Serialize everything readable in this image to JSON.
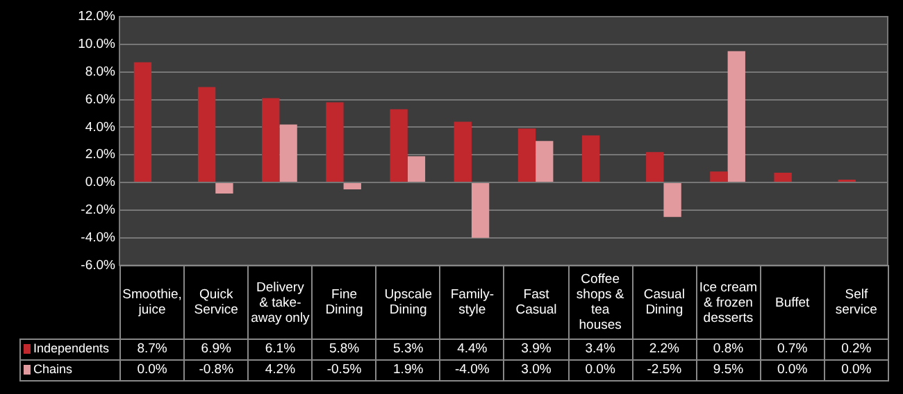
{
  "chart_data": {
    "type": "bar",
    "categories": [
      "Smoothie, juice",
      "Quick Service",
      "Delivery & take-away only",
      "Fine Dining",
      "Upscale Dining",
      "Family-style",
      "Fast Casual",
      "Coffee shops & tea houses",
      "Casual Dining",
      "Ice cream & frozen desserts",
      "Buffet",
      "Self service"
    ],
    "series": [
      {
        "name": "Independents",
        "color": "#c0282e",
        "values": [
          8.7,
          6.9,
          6.1,
          5.8,
          5.3,
          4.4,
          3.9,
          3.4,
          2.2,
          0.8,
          0.7,
          0.2
        ],
        "value_labels": [
          "8.7%",
          "6.9%",
          "6.1%",
          "5.8%",
          "5.3%",
          "4.4%",
          "3.9%",
          "3.4%",
          "2.2%",
          "0.8%",
          "0.7%",
          "0.2%"
        ]
      },
      {
        "name": "Chains",
        "color": "#e39a9e",
        "values": [
          0.0,
          -0.8,
          4.2,
          -0.5,
          1.9,
          -4.0,
          3.0,
          0.0,
          -2.5,
          9.5,
          0.0,
          0.0
        ],
        "value_labels": [
          "0.0%",
          "-0.8%",
          "4.2%",
          "-0.5%",
          "1.9%",
          "-4.0%",
          "3.0%",
          "0.0%",
          "-2.5%",
          "9.5%",
          "0.0%",
          "0.0%"
        ]
      }
    ],
    "ylim": [
      -6,
      12
    ],
    "yticks": [
      {
        "value": -6,
        "label": "-6.0%"
      },
      {
        "value": -4,
        "label": "-4.0%"
      },
      {
        "value": -2,
        "label": "-2.0%"
      },
      {
        "value": 0,
        "label": "0.0%"
      },
      {
        "value": 2,
        "label": "2.0%"
      },
      {
        "value": 4,
        "label": "4.0%"
      },
      {
        "value": 6,
        "label": "6.0%"
      },
      {
        "value": 8,
        "label": "8.0%"
      },
      {
        "value": 10,
        "label": "10.0%"
      },
      {
        "value": 12,
        "label": "12.0%"
      }
    ],
    "grid": "y",
    "legend": "bottom left"
  }
}
